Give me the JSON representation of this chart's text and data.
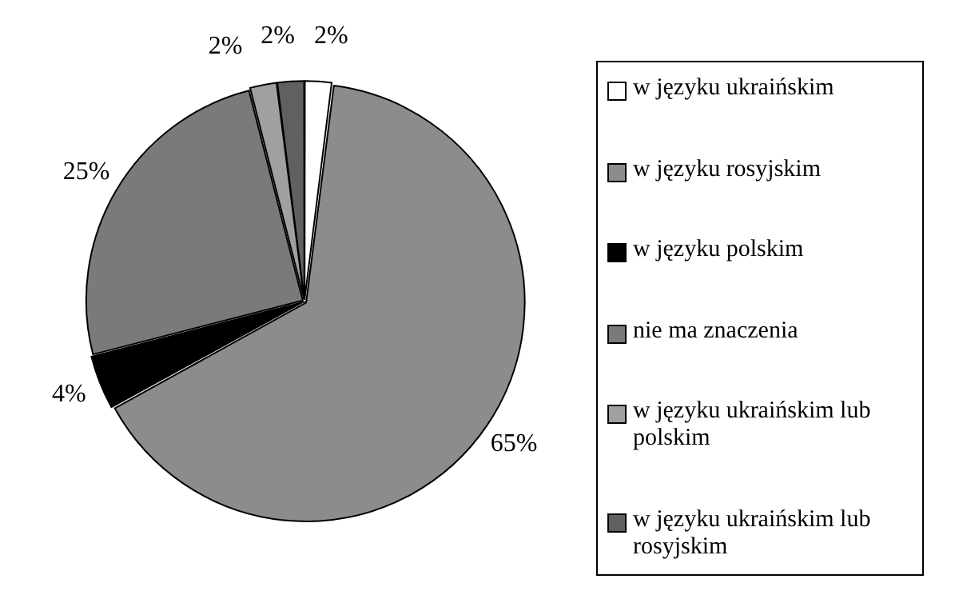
{
  "chart_data": {
    "type": "pie",
    "categories": [
      "w języku ukraińskim",
      "w języku rosyjskim",
      "w języku polskim",
      "nie ma znaczenia",
      "w języku ukraińskim lub polskim",
      "w języku ukraińskim lub rosyjskim"
    ],
    "values": [
      2,
      65,
      4,
      25,
      2,
      2
    ],
    "value_labels": [
      "2%",
      "65%",
      "4%",
      "25%",
      "2%",
      "2%"
    ],
    "colors": [
      "#ffffff",
      "#8c8c8c",
      "#000000",
      "#7a7a7a",
      "#a0a0a0",
      "#606060"
    ],
    "legend": "right"
  }
}
